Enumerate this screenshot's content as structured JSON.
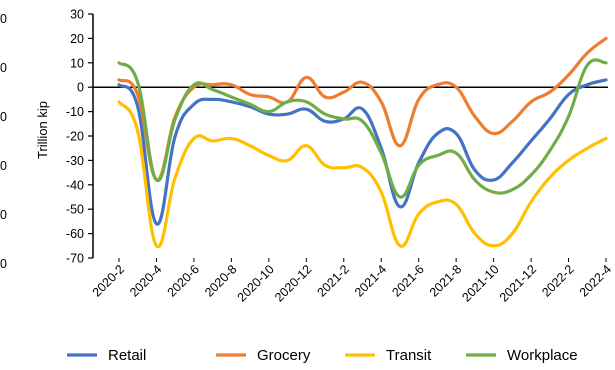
{
  "chart_data": {
    "type": "line",
    "title": "",
    "xlabel": "",
    "ylabel": "Trillion kip",
    "ylim": [
      -70,
      30
    ],
    "yticks": [
      "30",
      "20",
      "10",
      "0",
      "-10",
      "-20",
      "-30",
      "-40",
      "-50",
      "-60",
      "-70"
    ],
    "left_axis_ticks": [
      "0",
      "0",
      "0",
      "0",
      "0",
      "0"
    ],
    "x": [
      "2020-2",
      "2020-3",
      "2020-4",
      "2020-5",
      "2020-6",
      "2020-7",
      "2020-8",
      "2020-9",
      "2020-10",
      "2020-11",
      "2020-12",
      "2021-1",
      "2021-2",
      "2021-3",
      "2021-4",
      "2021-5",
      "2021-6",
      "2021-7",
      "2021-8",
      "2021-9",
      "2021-10",
      "2021-11",
      "2021-12",
      "2022-1",
      "2022-2",
      "2022-3",
      "2022-4"
    ],
    "xtick_labels": [
      "2020-2",
      "2020-4",
      "2020-6",
      "2020-8",
      "2020-10",
      "2020-12",
      "2021-2",
      "2021-4",
      "2021-6",
      "2021-8",
      "2021-10",
      "2021-12",
      "2022-2",
      "2022-4"
    ],
    "legend_position": "bottom",
    "grid": false,
    "zero_line": true,
    "series": [
      {
        "name": "Retail",
        "color": "#4472C4",
        "values": [
          1,
          -8,
          -56,
          -20,
          -7,
          -5,
          -6,
          -8,
          -11,
          -11,
          -9,
          -14,
          -13,
          -9,
          -25,
          -49,
          -31,
          -19,
          -19,
          -34,
          -38,
          -31,
          -22,
          -13,
          -3,
          1,
          3
        ]
      },
      {
        "name": "Grocery",
        "color": "#ED7D31",
        "values": [
          3,
          -3,
          -38,
          -12,
          0,
          1,
          1,
          -3,
          -4,
          -6,
          4,
          -4,
          -2,
          2,
          -6,
          -24,
          -5,
          1,
          0,
          -12,
          -19,
          -14,
          -6,
          -2,
          5,
          14,
          20
        ]
      },
      {
        "name": "Transit",
        "color": "#FFC000",
        "values": [
          -6,
          -18,
          -65,
          -37,
          -21,
          -22,
          -21,
          -24,
          -28,
          -30,
          -24,
          -32,
          -33,
          -33,
          -43,
          -65,
          -52,
          -47,
          -48,
          -60,
          -65,
          -60,
          -47,
          -37,
          -30,
          -25,
          -21
        ]
      },
      {
        "name": "Workplace",
        "color": "#70AD47",
        "values": [
          10,
          2,
          -38,
          -13,
          1,
          -1,
          -4,
          -7,
          -10,
          -6,
          -6,
          -11,
          -13,
          -14,
          -27,
          -45,
          -32,
          -28,
          -27,
          -38,
          -43,
          -42,
          -36,
          -26,
          -12,
          9,
          10
        ]
      }
    ]
  }
}
